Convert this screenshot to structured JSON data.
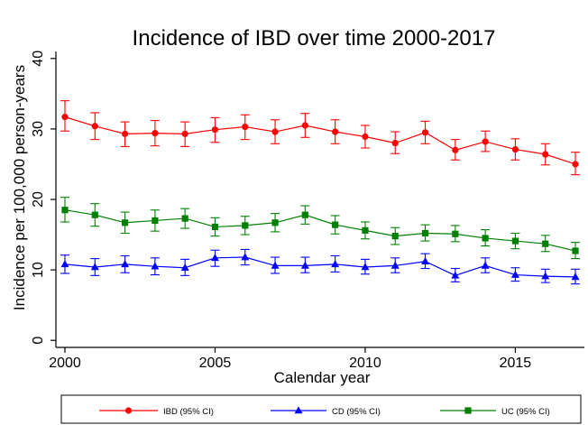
{
  "chart_data": {
    "type": "line",
    "title": "Incidence of IBD over time 2000-2017",
    "xlabel": "Calendar year",
    "ylabel": "Incidence per 100,000 person-years",
    "xlim": [
      1999.7,
      2017.3
    ],
    "ylim": [
      -1,
      41
    ],
    "x_ticks": [
      2000,
      2005,
      2010,
      2015
    ],
    "y_ticks": [
      0,
      10,
      20,
      30,
      40
    ],
    "grid": false,
    "legend_position": "bottom",
    "x": [
      2000,
      2001,
      2002,
      2003,
      2004,
      2005,
      2006,
      2007,
      2008,
      2009,
      2010,
      2011,
      2012,
      2013,
      2014,
      2015,
      2016,
      2017
    ],
    "series": [
      {
        "name": "IBD (95% CI)",
        "color": "#ff0000",
        "marker": "circle",
        "values": [
          31.7,
          30.4,
          29.3,
          29.4,
          29.3,
          29.9,
          30.3,
          29.6,
          30.5,
          29.6,
          28.9,
          28.0,
          29.5,
          27.0,
          28.2,
          27.1,
          26.4,
          25.0
        ],
        "lower": [
          29.7,
          28.5,
          27.5,
          27.6,
          27.5,
          28.1,
          28.5,
          27.9,
          28.8,
          27.9,
          27.3,
          26.5,
          27.9,
          25.6,
          26.8,
          25.6,
          24.9,
          23.5
        ],
        "upper": [
          34.0,
          32.3,
          31.0,
          31.2,
          31.0,
          31.6,
          32.0,
          31.3,
          32.2,
          31.3,
          30.5,
          29.6,
          31.1,
          28.5,
          29.7,
          28.6,
          27.9,
          26.7
        ]
      },
      {
        "name": "CD (95% CI)",
        "color": "#0000ff",
        "marker": "triangle",
        "values": [
          10.8,
          10.4,
          10.8,
          10.5,
          10.3,
          11.7,
          11.8,
          10.6,
          10.6,
          10.8,
          10.4,
          10.6,
          11.2,
          9.2,
          10.6,
          9.3,
          9.1,
          9.0
        ],
        "lower": [
          9.5,
          9.2,
          9.6,
          9.3,
          9.2,
          10.5,
          10.7,
          9.5,
          9.6,
          9.7,
          9.4,
          9.6,
          10.2,
          8.3,
          9.6,
          8.4,
          8.2,
          8.0
        ],
        "upper": [
          12.1,
          11.6,
          12.0,
          11.7,
          11.5,
          12.8,
          12.9,
          11.8,
          11.8,
          12.0,
          11.5,
          11.7,
          12.3,
          10.2,
          11.7,
          10.3,
          10.1,
          10.1
        ]
      },
      {
        "name": "UC (95% CI)",
        "color": "#008000",
        "marker": "square",
        "values": [
          18.5,
          17.8,
          16.7,
          17.0,
          17.3,
          16.1,
          16.3,
          16.7,
          17.8,
          16.4,
          15.6,
          14.8,
          15.2,
          15.1,
          14.5,
          14.1,
          13.7,
          12.7
        ],
        "lower": [
          16.8,
          16.2,
          15.2,
          15.5,
          15.9,
          14.8,
          15.0,
          15.4,
          16.5,
          15.1,
          14.4,
          13.6,
          14.1,
          14.0,
          13.4,
          13.0,
          12.6,
          11.6
        ],
        "upper": [
          20.3,
          19.4,
          18.2,
          18.5,
          18.7,
          17.4,
          17.6,
          18.0,
          19.1,
          17.7,
          16.8,
          16.0,
          16.4,
          16.3,
          15.7,
          15.2,
          14.9,
          13.9
        ]
      }
    ]
  }
}
